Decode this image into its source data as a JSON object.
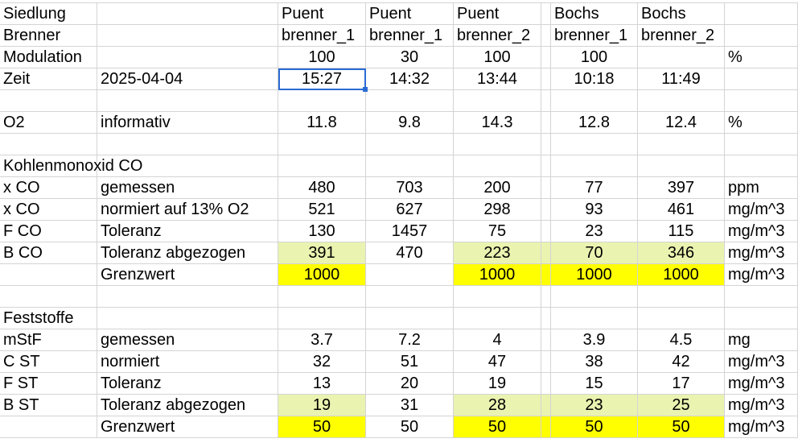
{
  "sheet": {
    "rows": [
      {
        "cells": [
          "Siedlung",
          "",
          "Puent",
          "Puent",
          "Puent",
          "",
          "Bochs",
          "Bochs",
          ""
        ],
        "align": "left"
      },
      {
        "cells": [
          "Brenner",
          "",
          "brenner_1",
          "brenner_1",
          "brenner_2",
          "",
          "brenner_1",
          "brenner_2",
          ""
        ],
        "align": "left"
      },
      {
        "cells": [
          "Modulation",
          "",
          "100",
          "30",
          "100",
          "",
          "100",
          "",
          "%"
        ]
      },
      {
        "cells": [
          "Zeit",
          "2025-04-04",
          "15:27",
          "14:32",
          "13:44",
          "",
          "10:18",
          "11:49",
          ""
        ],
        "active": 2
      },
      {
        "cells": [
          "",
          "",
          "",
          "",
          "",
          "",
          "",
          "",
          ""
        ]
      },
      {
        "cells": [
          "O2",
          "informativ",
          "11.8",
          "9.8",
          "14.3",
          "",
          "12.8",
          "12.4",
          "%"
        ]
      },
      {
        "cells": [
          "",
          "",
          "",
          "",
          "",
          "",
          "",
          "",
          ""
        ]
      },
      {
        "cells": [
          "Kohlenmonoxid CO",
          "",
          "",
          "",
          "",
          "",
          "",
          "",
          ""
        ]
      },
      {
        "cells": [
          "x CO",
          "gemessen",
          "480",
          "703",
          "200",
          "",
          "77",
          "397",
          "ppm"
        ]
      },
      {
        "cells": [
          "x CO",
          "normiert auf 13% O2",
          "521",
          "627",
          "298",
          "",
          "93",
          "461",
          "mg/m^3"
        ]
      },
      {
        "cells": [
          "F CO",
          "Toleranz",
          "130",
          "1457",
          "75",
          "",
          "23",
          "115",
          "mg/m^3"
        ]
      },
      {
        "cells": [
          "B CO",
          "Toleranz abgezogen",
          "391",
          "470",
          "223",
          "",
          "70",
          "346",
          "mg/m^3"
        ],
        "highlight": "light",
        "hl_cols": [
          2,
          4,
          5,
          6,
          7
        ]
      },
      {
        "cells": [
          "",
          "Grenzwert",
          "1000",
          "",
          "1000",
          "",
          "1000",
          "1000",
          "mg/m^3"
        ],
        "highlight": "yellow",
        "hl_cols": [
          2,
          4,
          5,
          6,
          7
        ]
      },
      {
        "cells": [
          "",
          "",
          "",
          "",
          "",
          "",
          "",
          "",
          ""
        ]
      },
      {
        "cells": [
          "Feststoffe",
          "",
          "",
          "",
          "",
          "",
          "",
          "",
          ""
        ]
      },
      {
        "cells": [
          "mStF",
          "gemessen",
          "3.7",
          "7.2",
          "4",
          "",
          "3.9",
          "4.5",
          "mg"
        ]
      },
      {
        "cells": [
          "C ST",
          "normiert",
          "32",
          "51",
          "47",
          "",
          "38",
          "42",
          "mg/m^3"
        ]
      },
      {
        "cells": [
          "F ST",
          "Toleranz",
          "13",
          "20",
          "19",
          "",
          "15",
          "17",
          "mg/m^3"
        ]
      },
      {
        "cells": [
          "B ST",
          "Toleranz abgezogen",
          "19",
          "31",
          "28",
          "",
          "23",
          "25",
          "mg/m^3"
        ],
        "highlight": "light",
        "hl_cols": [
          2,
          4,
          5,
          6,
          7
        ]
      },
      {
        "cells": [
          "",
          "Grenzwert",
          "50",
          "50",
          "50",
          "",
          "50",
          "50",
          "mg/m^3"
        ],
        "highlight": "yellow",
        "hl_cols": [
          2,
          4,
          5,
          6,
          7
        ]
      }
    ]
  },
  "colors": {
    "grid": "#d4d4d4",
    "highlight_light": "#eaf3b0",
    "highlight_yellow": "#ffff00",
    "active_cell": "#2a6bd4"
  }
}
